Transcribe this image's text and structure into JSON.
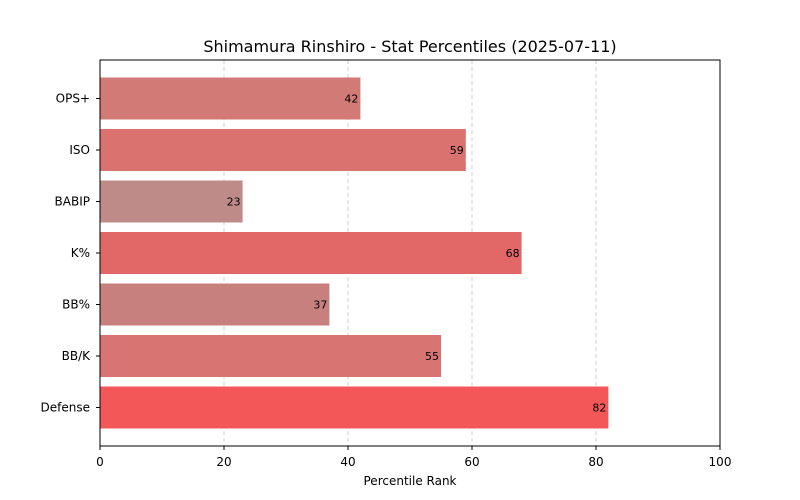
{
  "chart_data": {
    "type": "bar",
    "orientation": "horizontal",
    "title": "Shimamura Rinshiro - Stat Percentiles (2025-07-11)",
    "xlabel": "Percentile Rank",
    "ylabel": "",
    "xlim": [
      0,
      100
    ],
    "xticks": [
      0,
      20,
      40,
      60,
      80,
      100
    ],
    "grid": "vertical-dashed",
    "categories": [
      "OPS+",
      "ISO",
      "BABIP",
      "K%",
      "BB%",
      "BB/K",
      "Defense"
    ],
    "values": [
      42,
      59,
      23,
      68,
      37,
      55,
      82
    ],
    "bar_colors": [
      "#d17a76",
      "#da726f",
      "#bf8b89",
      "#e26868",
      "#c8807e",
      "#d87572",
      "#f45757"
    ]
  }
}
